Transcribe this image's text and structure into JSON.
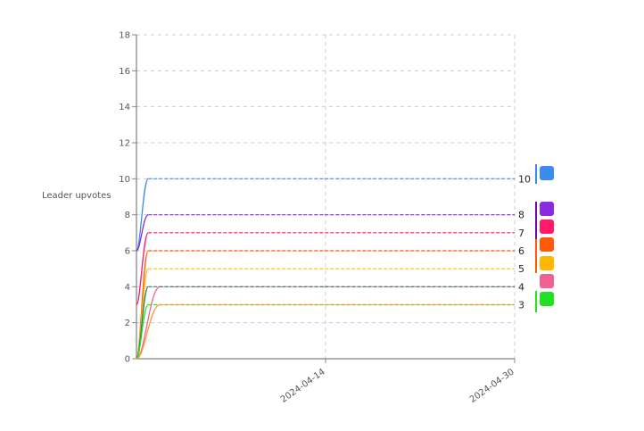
{
  "chart_data": {
    "type": "line",
    "ylabel": "Leader upvotes",
    "ylim": [
      0,
      18
    ],
    "yticks": [
      0,
      2,
      4,
      6,
      8,
      10,
      12,
      14,
      16,
      18
    ],
    "xlim": [
      "2024-03-29",
      "2024-04-30"
    ],
    "xticks": [
      "2024-04-14",
      "2024-04-30"
    ],
    "grid": true,
    "series": [
      {
        "value": 10,
        "color": "#3b8ced",
        "rise_from": 6,
        "rise_end": "2024-03-30"
      },
      {
        "value": 8,
        "color": "#8a2be2",
        "rise_from": 6,
        "rise_end": "2024-03-30"
      },
      {
        "value": 7,
        "color": "#ff1a6a",
        "rise_from": 3,
        "rise_end": "2024-03-30"
      },
      {
        "value": 6,
        "color": "#ff5a0a",
        "rise_from": 0,
        "rise_end": "2024-03-30"
      },
      {
        "value": 5,
        "color": "#ffb800",
        "rise_from": 0,
        "rise_end": "2024-03-30"
      },
      {
        "value": 4,
        "color": "#f06292",
        "rise_from": 0,
        "rise_end": "2024-03-31"
      },
      {
        "value": 4,
        "color": "#2e7d64",
        "rise_from": 0,
        "rise_end": "2024-03-30"
      },
      {
        "value": 3,
        "color": "#22e022",
        "rise_from": 0,
        "rise_end": "2024-03-30"
      },
      {
        "value": 3,
        "color": "#ff9a2a",
        "rise_from": 0,
        "rise_end": "2024-03-31"
      }
    ],
    "end_labels": [
      {
        "text": "10",
        "value": 10
      },
      {
        "text": "8",
        "value": 8
      },
      {
        "text": "7",
        "value": 7
      },
      {
        "text": "6",
        "value": 6
      },
      {
        "text": "5",
        "value": 5
      },
      {
        "text": "4",
        "value": 4
      },
      {
        "text": "3",
        "value": 3
      }
    ],
    "legend": {
      "placement": "right",
      "swatches": [
        "#3b8ced",
        "#8a2be2",
        "#ff1a6a",
        "#ff5a0a",
        "#ffb800",
        "#f06292",
        "#22e022"
      ],
      "bars": [
        "#3b8ced",
        "#6a0dad",
        "#ff5a0a",
        "#22e022"
      ]
    }
  }
}
